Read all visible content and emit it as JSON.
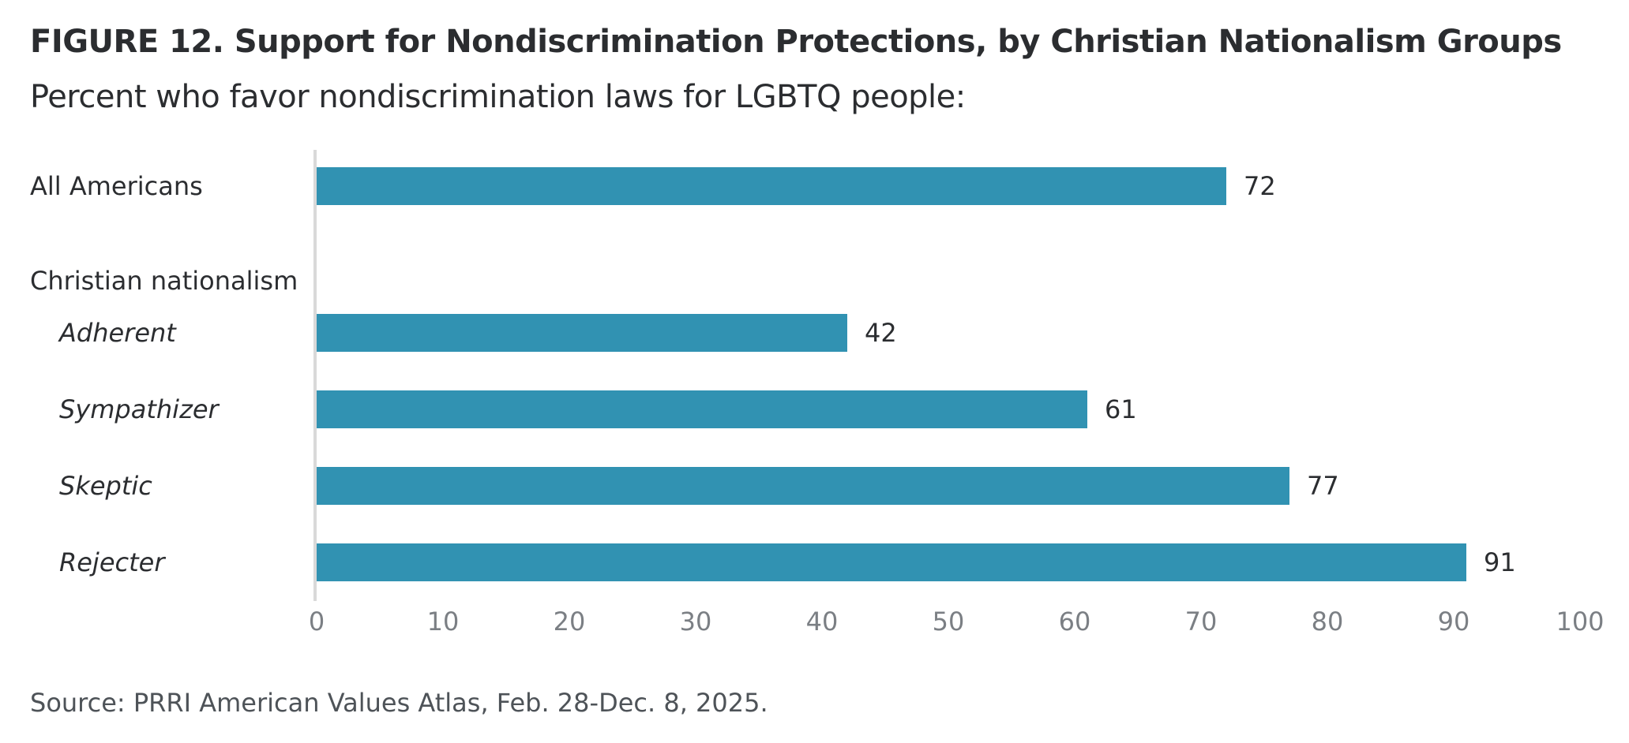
{
  "figure": {
    "title": "FIGURE 12.  Support for Nondiscrimination Protections, by Christian Nationalism Groups",
    "subtitle": "Percent who favor nondiscrimination laws for LGBTQ people:",
    "source": "Source: PRRI American Values Atlas, Feb. 28-Dec. 8, 2025."
  },
  "colors": {
    "bar": "#3192b2",
    "axis": "#d9d9d9",
    "text": "#2b2d30",
    "tick": "#7b7f84"
  },
  "chart_data": {
    "type": "bar",
    "orientation": "horizontal",
    "title": "Support for Nondiscrimination Protections, by Christian Nationalism Groups",
    "subtitle": "Percent who favor nondiscrimination laws for LGBTQ people:",
    "xlabel": "",
    "ylabel": "",
    "xlim": [
      0,
      100
    ],
    "xticks": [
      0,
      10,
      20,
      30,
      40,
      50,
      60,
      70,
      80,
      90,
      100
    ],
    "grid": false,
    "legend": "none",
    "group_header": "Christian nationalism",
    "categories": [
      "All Americans",
      "Adherent",
      "Sympathizer",
      "Skeptic",
      "Rejecter"
    ],
    "values": [
      72,
      42,
      61,
      77,
      91
    ],
    "italic": [
      false,
      true,
      true,
      true,
      true
    ]
  }
}
